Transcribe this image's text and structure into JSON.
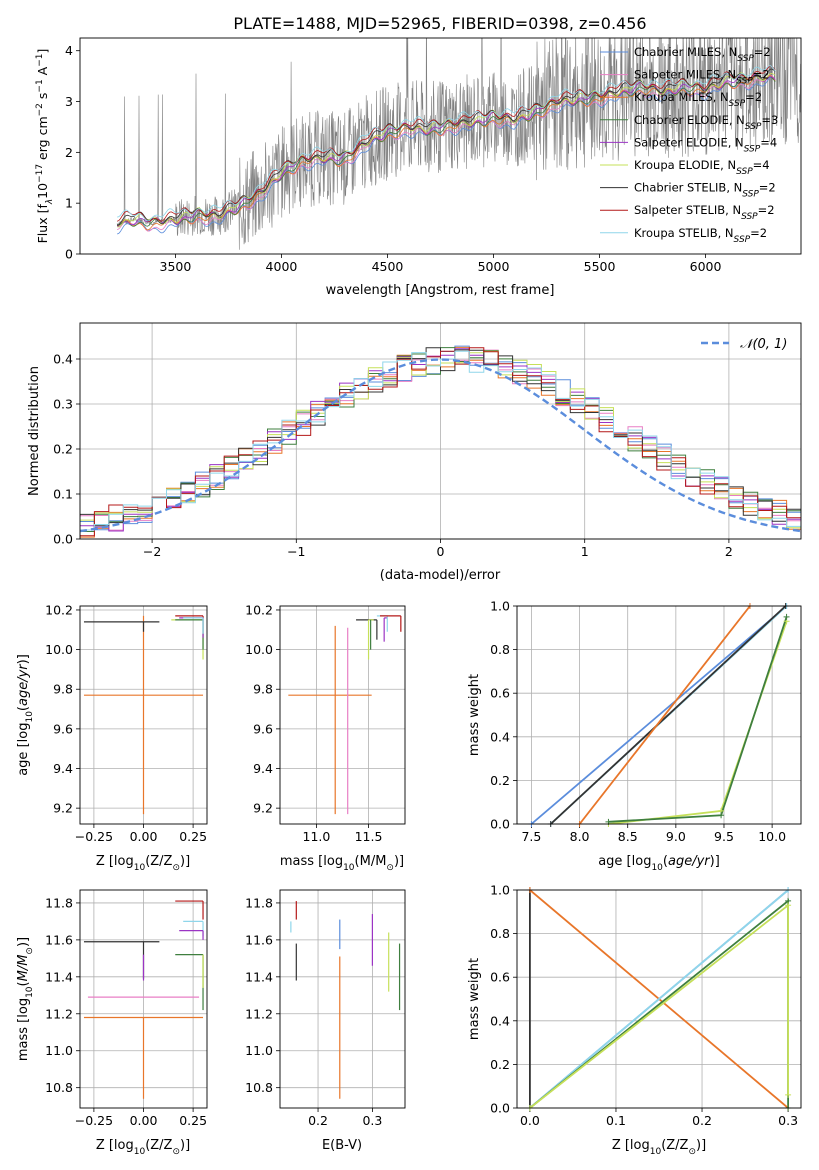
{
  "figure": {
    "title": "PLATE=1488, MJD=52965, FIBERID=0398, z=0.456"
  },
  "colors": {
    "Chabrier MILES": "#5b8ddc",
    "Salpeter MILES": "#e87fc5",
    "Kroupa MILES": "#e8762a",
    "Chabrier ELODIE": "#3f7f3f",
    "Salpeter ELODIE": "#9b34c4",
    "Kroupa ELODIE": "#c6e05a",
    "Chabrier STELIB": "#333333",
    "Salpeter STELIB": "#b41818",
    "Kroupa STELIB": "#8fd6ea",
    "data": "#808080",
    "gaussian": "#5b8ddc"
  },
  "chart_data": [
    {
      "id": "spectrum",
      "type": "line",
      "title": "PLATE=1488, MJD=52965, FIBERID=0398, z=0.456",
      "xlabel": "wavelength [Angstrom, rest frame]",
      "ylabel_main": "Flux [f",
      "ylabel_sub": "λ",
      "ylabel_rest": "10",
      "ylabel_exp": "−17",
      "ylabel_units": " erg cm",
      "ylabel_units_exp": "−2",
      "ylabel_s": " s",
      "ylabel_s_exp": "−1",
      "ylabel_A": " A",
      "ylabel_A_exp": "−1",
      "ylabel_end": "]",
      "xlim": [
        3050,
        6450
      ],
      "ylim": [
        0,
        4.25
      ],
      "xticks": [
        "3500",
        "4000",
        "4500",
        "5000",
        "5500",
        "6000"
      ],
      "xtick_values": [
        3500,
        4000,
        4500,
        5000,
        5500,
        6000
      ],
      "yticks": [
        "0",
        "1",
        "2",
        "3",
        "4"
      ],
      "ytick_values": [
        0,
        1,
        2,
        3,
        4
      ],
      "grid": false,
      "legend_position": "top-right",
      "legend": [
        {
          "name": "Chabrier MILES",
          "nssp": "2"
        },
        {
          "name": "Salpeter MILES",
          "nssp": "2"
        },
        {
          "name": "Kroupa MILES",
          "nssp": "2"
        },
        {
          "name": "Chabrier ELODIE",
          "nssp": "3"
        },
        {
          "name": "Salpeter ELODIE",
          "nssp": "4"
        },
        {
          "name": "Kroupa ELODIE",
          "nssp": "4"
        },
        {
          "name": "Chabrier STELIB",
          "nssp": "2"
        },
        {
          "name": "Salpeter STELIB",
          "nssp": "2"
        },
        {
          "name": "Kroupa STELIB",
          "nssp": "2"
        }
      ],
      "nssp_label": ", N",
      "nssp_sub": "SSP",
      "model_continuum": [
        [
          3225,
          0.6
        ],
        [
          3300,
          0.68
        ],
        [
          3400,
          0.62
        ],
        [
          3500,
          0.68
        ],
        [
          3600,
          0.78
        ],
        [
          3700,
          0.75
        ],
        [
          3800,
          0.95
        ],
        [
          3900,
          1.2
        ],
        [
          4000,
          1.6
        ],
        [
          4100,
          1.85
        ],
        [
          4200,
          1.9
        ],
        [
          4300,
          1.88
        ],
        [
          4400,
          2.2
        ],
        [
          4500,
          2.4
        ],
        [
          4600,
          2.5
        ],
        [
          4700,
          2.45
        ],
        [
          4800,
          2.55
        ],
        [
          4900,
          2.6
        ],
        [
          5000,
          2.7
        ],
        [
          5100,
          2.65
        ],
        [
          5200,
          2.8
        ],
        [
          5300,
          3.0
        ],
        [
          5400,
          3.05
        ],
        [
          5500,
          3.1
        ],
        [
          5600,
          3.2
        ],
        [
          5700,
          3.3
        ],
        [
          5800,
          3.2
        ],
        [
          5900,
          3.3
        ],
        [
          6000,
          3.25
        ],
        [
          6100,
          3.4
        ],
        [
          6200,
          3.45
        ],
        [
          6300,
          3.5
        ]
      ]
    },
    {
      "id": "residuals",
      "type": "histogram",
      "xlabel": "(data-model)/error",
      "ylabel": "Normed distribution",
      "xlim": [
        -2.5,
        2.5
      ],
      "ylim": [
        0,
        0.48
      ],
      "xticks": [
        "−2",
        "−1",
        "0",
        "1",
        "2"
      ],
      "xtick_values": [
        -2,
        -1,
        0,
        1,
        2
      ],
      "yticks": [
        "0.0",
        "0.1",
        "0.2",
        "0.3",
        "0.4"
      ],
      "ytick_values": [
        0,
        0.1,
        0.2,
        0.3,
        0.4
      ],
      "grid": true,
      "legend_position": "top-right",
      "gaussian_label": "𝒩(0, 1)",
      "bin_width": 0.1
    },
    {
      "id": "age_vs_Z",
      "type": "errorbar",
      "xlabel_main": "Z [log",
      "xlabel_sub": "10",
      "xlabel_rest": "(Z/Z",
      "xlabel_sun_sub": "⊙",
      "xlabel_end": ")]",
      "ylabel_main": "age  [log",
      "ylabel_sub": "10",
      "ylabel_rest": "(age/yr)]",
      "xlim": [
        -0.32,
        0.32
      ],
      "ylim": [
        9.12,
        10.22
      ],
      "xticks": [
        "−0.25",
        "0.00",
        "0.25"
      ],
      "xtick_values": [
        -0.25,
        0,
        0.25
      ],
      "yticks": [
        "9.2",
        "9.4",
        "9.6",
        "9.8",
        "10.0",
        "10.2"
      ],
      "ytick_values": [
        9.2,
        9.4,
        9.6,
        9.8,
        10.0,
        10.2
      ],
      "grid": true,
      "points": [
        {
          "model": "Kroupa MILES",
          "x": 0.0,
          "xerr": [
            0.3,
            0.3
          ],
          "y": 9.77,
          "yerr": [
            0.6,
            0.4
          ]
        },
        {
          "model": "Chabrier STELIB",
          "x": 0.0,
          "xerr": [
            0.3,
            0.08
          ],
          "y": 10.14,
          "yerr": [
            0.05,
            0.0
          ]
        },
        {
          "model": "Salpeter STELIB",
          "x": 0.3,
          "xerr": [
            0.14,
            0.0
          ],
          "y": 10.17,
          "yerr": [
            0.02,
            0.0
          ]
        },
        {
          "model": "Kroupa ELODIE",
          "x": 0.3,
          "xerr": [
            0.16,
            0.0
          ],
          "y": 10.15,
          "yerr": [
            0.2,
            0.0
          ]
        },
        {
          "model": "Chabrier ELODIE",
          "x": 0.3,
          "xerr": [
            0.14,
            0.0
          ],
          "y": 10.15,
          "yerr": [
            0.15,
            0.0
          ]
        },
        {
          "model": "Salpeter ELODIE",
          "x": 0.3,
          "xerr": [
            0.12,
            0.0
          ],
          "y": 10.16,
          "yerr": [
            0.1,
            0.0
          ]
        },
        {
          "model": "Kroupa STELIB",
          "x": 0.3,
          "xerr": [
            0.1,
            0.0
          ],
          "y": 10.16,
          "yerr": [
            0.08,
            0.0
          ]
        }
      ]
    },
    {
      "id": "age_vs_mass",
      "type": "errorbar",
      "xlabel_main": "mass [log",
      "xlabel_sub": "10",
      "xlabel_rest": "(M/M",
      "xlabel_sun_sub": "⊙",
      "xlabel_end": ")]",
      "xlim": [
        10.65,
        11.85
      ],
      "ylim": [
        9.12,
        10.22
      ],
      "xticks": [
        "11.0",
        "11.5"
      ],
      "xtick_values": [
        11.0,
        11.5
      ],
      "yticks": [
        "9.2",
        "9.4",
        "9.6",
        "9.8",
        "10.0",
        "10.2"
      ],
      "ytick_values": [
        9.2,
        9.4,
        9.6,
        9.8,
        10.0,
        10.2
      ],
      "grid": true,
      "points": [
        {
          "model": "Kroupa MILES",
          "x": 11.18,
          "xerr": [
            0.45,
            0.35
          ],
          "y": 9.77,
          "yerr": [
            0.6,
            0.35
          ]
        },
        {
          "model": "Salpeter MILES",
          "x": 11.3,
          "xerr": [
            0.0,
            0.0
          ],
          "y": 9.77,
          "yerr": [
            0.6,
            0.34
          ]
        },
        {
          "model": "Chabrier STELIB",
          "x": 11.58,
          "xerr": [
            0.2,
            0.0
          ],
          "y": 10.15,
          "yerr": [
            0.1,
            0.0
          ]
        },
        {
          "model": "Kroupa ELODIE",
          "x": 11.5,
          "xerr": [
            0.0,
            0.05
          ],
          "y": 10.15,
          "yerr": [
            0.2,
            0.0
          ]
        },
        {
          "model": "Chabrier ELODIE",
          "x": 11.52,
          "xerr": [
            0.0,
            0.0
          ],
          "y": 10.15,
          "yerr": [
            0.15,
            0.0
          ]
        },
        {
          "model": "Salpeter ELODIE",
          "x": 11.65,
          "xerr": [
            0.0,
            0.03
          ],
          "y": 10.16,
          "yerr": [
            0.12,
            0.0
          ]
        },
        {
          "model": "Kroupa STELIB",
          "x": 11.68,
          "xerr": [
            0.1,
            0.0
          ],
          "y": 10.17,
          "yerr": [
            0.08,
            0.0
          ]
        },
        {
          "model": "Salpeter STELIB",
          "x": 11.81,
          "xerr": [
            0.2,
            0.0
          ],
          "y": 10.17,
          "yerr": [
            0.08,
            0.0
          ]
        }
      ]
    },
    {
      "id": "weight_vs_age",
      "type": "line",
      "xlabel_main": "age  [log",
      "xlabel_sub": "10",
      "xlabel_rest": "(age/yr)]",
      "ylabel": "mass weight",
      "xlim": [
        7.35,
        10.3
      ],
      "ylim": [
        0,
        1
      ],
      "xticks": [
        "7.5",
        "8.0",
        "8.5",
        "9.0",
        "9.5",
        "10.0"
      ],
      "xtick_values": [
        7.5,
        8.0,
        8.5,
        9.0,
        9.5,
        10.0
      ],
      "yticks": [
        "0.0",
        "0.2",
        "0.4",
        "0.6",
        "0.8",
        "1.0"
      ],
      "ytick_values": [
        0,
        0.2,
        0.4,
        0.6,
        0.8,
        1.0
      ],
      "grid": true,
      "series": [
        {
          "model": "Chabrier MILES",
          "x": [
            7.5,
            10.15
          ],
          "y": [
            0,
            1
          ]
        },
        {
          "model": "Kroupa STELIB",
          "x": [
            7.7,
            10.15
          ],
          "y": [
            0,
            1
          ]
        },
        {
          "model": "Chabrier STELIB",
          "x": [
            7.7,
            10.14
          ],
          "y": [
            0,
            1
          ]
        },
        {
          "model": "Kroupa MILES",
          "x": [
            8.0,
            9.77
          ],
          "y": [
            0,
            1
          ]
        },
        {
          "model": "Kroupa ELODIE",
          "x": [
            8.3,
            9.47,
            10.15
          ],
          "y": [
            0,
            0.06,
            0.93
          ]
        },
        {
          "model": "Chabrier ELODIE",
          "x": [
            8.3,
            9.47,
            10.15
          ],
          "y": [
            0.01,
            0.04,
            0.95
          ]
        }
      ]
    },
    {
      "id": "mass_vs_Z",
      "type": "errorbar",
      "xlabel_main": "Z [log",
      "xlabel_sub": "10",
      "xlabel_rest": "(Z/Z",
      "xlabel_sun_sub": "⊙",
      "xlabel_end": ")]",
      "ylabel_main": "mass [log",
      "ylabel_sub": "10",
      "ylabel_rest": "(M/M",
      "ylabel_sun_sub": "⊙",
      "ylabel_end": ")]",
      "xlim": [
        -0.32,
        0.32
      ],
      "ylim": [
        10.69,
        11.87
      ],
      "xticks": [
        "−0.25",
        "0.00",
        "0.25"
      ],
      "xtick_values": [
        -0.25,
        0,
        0.25
      ],
      "yticks": [
        "10.8",
        "11.0",
        "11.2",
        "11.4",
        "11.6",
        "11.8"
      ],
      "ytick_values": [
        10.8,
        11.0,
        11.2,
        11.4,
        11.6,
        11.8
      ],
      "grid": true,
      "points": [
        {
          "model": "Kroupa MILES",
          "x": 0.0,
          "xerr": [
            0.3,
            0.3
          ],
          "y": 11.18,
          "yerr": [
            0.44,
            0.0
          ]
        },
        {
          "model": "Salpeter MILES",
          "x": 0.0,
          "xerr": [
            0.28,
            0.28
          ],
          "y": 11.29,
          "yerr": [
            0.0,
            0.0
          ]
        },
        {
          "model": "Chabrier STELIB",
          "x": 0.0,
          "xerr": [
            0.3,
            0.08
          ],
          "y": 11.59,
          "yerr": [
            0.2,
            0.0
          ]
        },
        {
          "model": "Salpeter ELODIE",
          "x": 0.0,
          "xerr": [
            0.0,
            0.0
          ],
          "y": 11.45,
          "yerr": [
            0.07,
            0.07
          ]
        },
        {
          "model": "Salpeter STELIB",
          "x": 0.3,
          "xerr": [
            0.14,
            0.0
          ],
          "y": 11.81,
          "yerr": [
            0.1,
            0.0
          ]
        },
        {
          "model": "Kroupa STELIB",
          "x": 0.3,
          "xerr": [
            0.1,
            0.0
          ],
          "y": 11.7,
          "yerr": [
            0.08,
            0.0
          ]
        },
        {
          "model": "Salpeter ELODIE",
          "x": 0.3,
          "xerr": [
            0.12,
            0.0
          ],
          "y": 11.65,
          "yerr": [
            0.05,
            0.0
          ]
        },
        {
          "model": "Chabrier ELODIE",
          "x": 0.3,
          "xerr": [
            0.14,
            0.0
          ],
          "y": 11.52,
          "yerr": [
            0.3,
            0.0
          ]
        },
        {
          "model": "Kroupa ELODIE",
          "x": 0.3,
          "xerr": [
            0.0,
            0.0
          ],
          "y": 11.52,
          "yerr": [
            0.18,
            0.0
          ]
        }
      ]
    },
    {
      "id": "mass_vs_ebv",
      "type": "errorbar",
      "xlabel": "E(B-V)",
      "xlim": [
        0.13,
        0.36
      ],
      "ylim": [
        10.69,
        11.87
      ],
      "xticks": [
        "0.2",
        "0.3"
      ],
      "xtick_values": [
        0.2,
        0.3
      ],
      "yticks": [
        "10.8",
        "11.0",
        "11.2",
        "11.4",
        "11.6",
        "11.8"
      ],
      "ytick_values": [
        10.8,
        11.0,
        11.2,
        11.4,
        11.6,
        11.8
      ],
      "grid": true,
      "points": [
        {
          "model": "Kroupa STELIB",
          "x": 0.15,
          "y": 11.67,
          "yerr": [
            0.03,
            0.03
          ]
        },
        {
          "model": "Salpeter STELIB",
          "x": 0.16,
          "y": 11.76,
          "yerr": [
            0.05,
            0.05
          ]
        },
        {
          "model": "Chabrier STELIB",
          "x": 0.16,
          "y": 11.5,
          "yerr": [
            0.12,
            0.08
          ]
        },
        {
          "model": "Chabrier MILES",
          "x": 0.24,
          "y": 11.63,
          "yerr": [
            0.08,
            0.08
          ]
        },
        {
          "model": "Kroupa MILES",
          "x": 0.24,
          "y": 11.12,
          "yerr": [
            0.38,
            0.39
          ]
        },
        {
          "model": "Salpeter ELODIE",
          "x": 0.3,
          "y": 11.6,
          "yerr": [
            0.14,
            0.14
          ]
        },
        {
          "model": "Kroupa ELODIE",
          "x": 0.33,
          "y": 11.48,
          "yerr": [
            0.16,
            0.16
          ]
        },
        {
          "model": "Chabrier ELODIE",
          "x": 0.35,
          "y": 11.4,
          "yerr": [
            0.18,
            0.18
          ]
        }
      ]
    },
    {
      "id": "weight_vs_Z",
      "type": "line",
      "xlabel_main": "Z [log",
      "xlabel_sub": "10",
      "xlabel_rest": "(Z/Z",
      "xlabel_sun_sub": "⊙",
      "xlabel_end": ")]",
      "ylabel": "mass weight",
      "xlim": [
        -0.015,
        0.315
      ],
      "ylim": [
        0,
        1
      ],
      "xticks": [
        "0.0",
        "0.1",
        "0.2",
        "0.3"
      ],
      "xtick_values": [
        0,
        0.1,
        0.2,
        0.3
      ],
      "yticks": [
        "0.0",
        "0.2",
        "0.4",
        "0.6",
        "0.8",
        "1.0"
      ],
      "ytick_values": [
        0,
        0.2,
        0.4,
        0.6,
        0.8,
        1.0
      ],
      "grid": true,
      "series": [
        {
          "model": "Chabrier STELIB",
          "x": [
            0.0,
            0.0
          ],
          "y": [
            0.0,
            1.0
          ]
        },
        {
          "model": "Kroupa MILES",
          "x": [
            0.0,
            0.3
          ],
          "y": [
            1.0,
            0.0
          ]
        },
        {
          "model": "Chabrier MILES",
          "x": [
            0.0,
            0.3
          ],
          "y": [
            0.0,
            1.0
          ]
        },
        {
          "model": "Kroupa STELIB",
          "x": [
            0.0,
            0.3
          ],
          "y": [
            0.0,
            1.0
          ]
        },
        {
          "model": "Chabrier ELODIE",
          "x": [
            0.0,
            0.3,
            0.3
          ],
          "y": [
            0.0,
            0.95,
            0.0
          ]
        },
        {
          "model": "Kroupa ELODIE",
          "x": [
            0.0,
            0.3,
            0.3
          ],
          "y": [
            0.0,
            0.93,
            0.06
          ]
        }
      ]
    }
  ]
}
